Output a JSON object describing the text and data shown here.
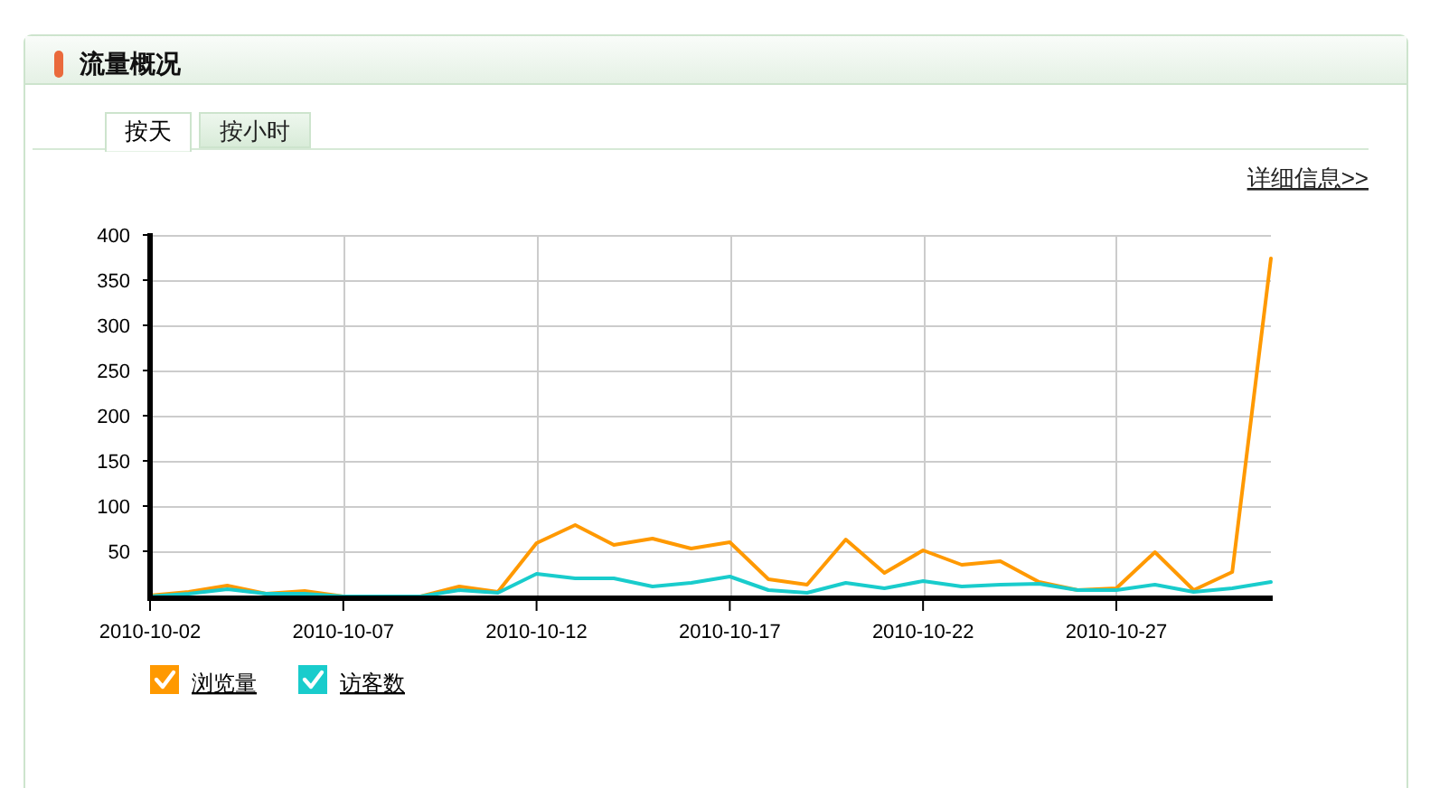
{
  "chart_data": {
    "type": "line",
    "title": "流量概况",
    "annotations": [
      "按天",
      "按小时",
      "详细信息>>"
    ],
    "x": [
      "2010-10-02",
      "2010-10-03",
      "2010-10-04",
      "2010-10-05",
      "2010-10-06",
      "2010-10-07",
      "2010-10-08",
      "2010-10-09",
      "2010-10-10",
      "2010-10-11",
      "2010-10-12",
      "2010-10-13",
      "2010-10-14",
      "2010-10-15",
      "2010-10-16",
      "2010-10-17",
      "2010-10-18",
      "2010-10-19",
      "2010-10-20",
      "2010-10-21",
      "2010-10-22",
      "2010-10-23",
      "2010-10-24",
      "2010-10-25",
      "2010-10-26",
      "2010-10-27",
      "2010-10-28",
      "2010-10-29",
      "2010-10-30",
      "2010-10-31"
    ],
    "series": [
      {
        "name": "浏览量",
        "color": "#ff9900",
        "values": [
          1,
          5,
          12,
          3,
          6,
          0,
          0,
          0,
          11,
          5,
          59,
          79,
          57,
          64,
          53,
          60,
          19,
          13,
          63,
          26,
          51,
          35,
          39,
          16,
          7,
          9,
          49,
          7,
          27,
          374
        ]
      },
      {
        "name": "访客数",
        "color": "#19cccc",
        "values": [
          0,
          3,
          8,
          3,
          3,
          0,
          0,
          0,
          7,
          4,
          25,
          20,
          20,
          11,
          15,
          22,
          7,
          4,
          15,
          9,
          17,
          11,
          13,
          14,
          7,
          7,
          13,
          5,
          9,
          16
        ]
      }
    ],
    "xlim": [
      "2010-10-02",
      "2010-10-31"
    ],
    "xticks": [
      "2010-10-02",
      "2010-10-07",
      "2010-10-12",
      "2010-10-17",
      "2010-10-22",
      "2010-10-27"
    ],
    "ylim": [
      0,
      400
    ],
    "yticks": [
      50,
      100,
      150,
      200,
      250,
      300,
      350,
      400
    ],
    "grid": true,
    "legend": "bottom left",
    "marker": "none",
    "line_style": "solid"
  }
}
